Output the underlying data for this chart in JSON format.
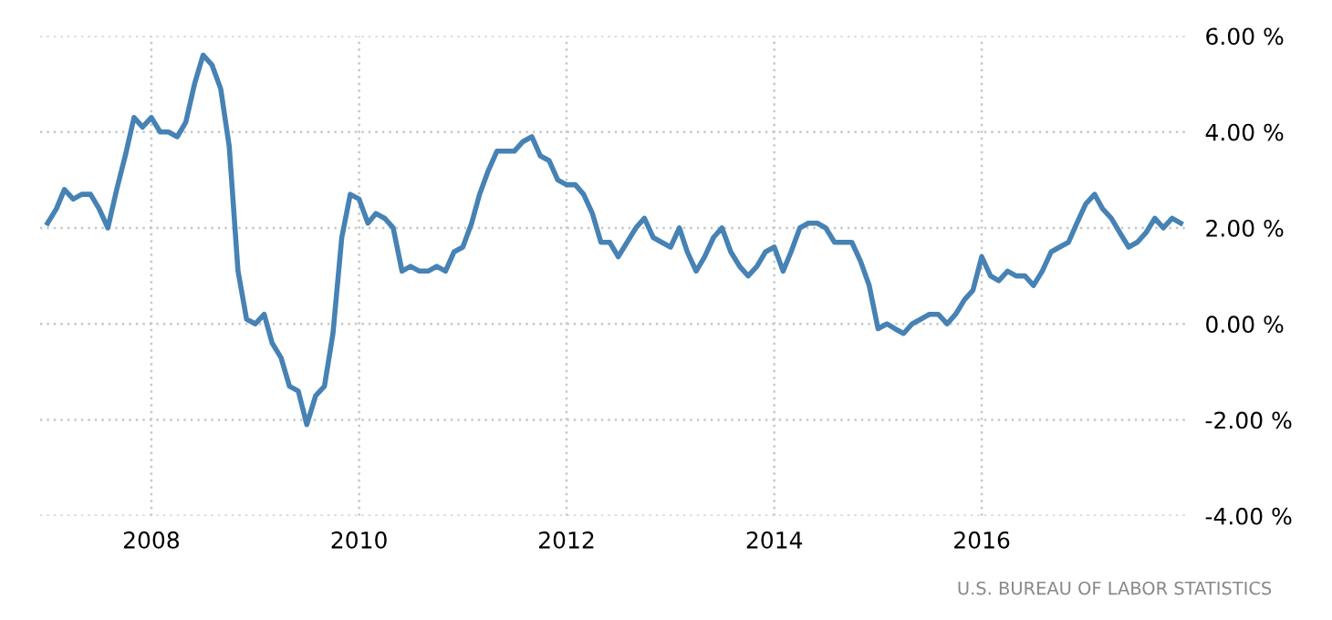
{
  "chart_data": {
    "type": "line",
    "x": [
      "2007-01",
      "2007-02",
      "2007-03",
      "2007-04",
      "2007-05",
      "2007-06",
      "2007-07",
      "2007-08",
      "2007-09",
      "2007-10",
      "2007-11",
      "2007-12",
      "2008-01",
      "2008-02",
      "2008-03",
      "2008-04",
      "2008-05",
      "2008-06",
      "2008-07",
      "2008-08",
      "2008-09",
      "2008-10",
      "2008-11",
      "2008-12",
      "2009-01",
      "2009-02",
      "2009-03",
      "2009-04",
      "2009-05",
      "2009-06",
      "2009-07",
      "2009-08",
      "2009-09",
      "2009-10",
      "2009-11",
      "2009-12",
      "2010-01",
      "2010-02",
      "2010-03",
      "2010-04",
      "2010-05",
      "2010-06",
      "2010-07",
      "2010-08",
      "2010-09",
      "2010-10",
      "2010-11",
      "2010-12",
      "2011-01",
      "2011-02",
      "2011-03",
      "2011-04",
      "2011-05",
      "2011-06",
      "2011-07",
      "2011-08",
      "2011-09",
      "2011-10",
      "2011-11",
      "2011-12",
      "2012-01",
      "2012-02",
      "2012-03",
      "2012-04",
      "2012-05",
      "2012-06",
      "2012-07",
      "2012-08",
      "2012-09",
      "2012-10",
      "2012-11",
      "2012-12",
      "2013-01",
      "2013-02",
      "2013-03",
      "2013-04",
      "2013-05",
      "2013-06",
      "2013-07",
      "2013-08",
      "2013-09",
      "2013-10",
      "2013-11",
      "2013-12",
      "2014-01",
      "2014-02",
      "2014-03",
      "2014-04",
      "2014-05",
      "2014-06",
      "2014-07",
      "2014-08",
      "2014-09",
      "2014-10",
      "2014-11",
      "2014-12",
      "2015-01",
      "2015-02",
      "2015-03",
      "2015-04",
      "2015-05",
      "2015-06",
      "2015-07",
      "2015-08",
      "2015-09",
      "2015-10",
      "2015-11",
      "2015-12",
      "2016-01",
      "2016-02",
      "2016-03",
      "2016-04",
      "2016-05",
      "2016-06",
      "2016-07",
      "2016-08",
      "2016-09",
      "2016-10",
      "2016-11",
      "2016-12",
      "2017-01",
      "2017-02",
      "2017-03",
      "2017-04",
      "2017-05",
      "2017-06",
      "2017-07",
      "2017-08",
      "2017-09",
      "2017-10",
      "2017-11",
      "2017-12"
    ],
    "series": [
      {
        "color": "#4682b4",
        "values": [
          2.1,
          2.4,
          2.8,
          2.6,
          2.7,
          2.7,
          2.4,
          2.0,
          2.8,
          3.5,
          4.3,
          4.1,
          4.3,
          4.0,
          4.0,
          3.9,
          4.2,
          5.0,
          5.6,
          5.4,
          4.9,
          3.7,
          1.1,
          0.1,
          0.0,
          0.2,
          -0.4,
          -0.7,
          -1.3,
          -1.4,
          -2.1,
          -1.5,
          -1.3,
          -0.2,
          1.8,
          2.7,
          2.6,
          2.1,
          2.3,
          2.2,
          2.0,
          1.1,
          1.2,
          1.1,
          1.1,
          1.2,
          1.1,
          1.5,
          1.6,
          2.1,
          2.7,
          3.2,
          3.6,
          3.6,
          3.6,
          3.8,
          3.9,
          3.5,
          3.4,
          3.0,
          2.9,
          2.9,
          2.7,
          2.3,
          1.7,
          1.7,
          1.4,
          1.7,
          2.0,
          2.2,
          1.8,
          1.7,
          1.6,
          2.0,
          1.5,
          1.1,
          1.4,
          1.8,
          2.0,
          1.5,
          1.2,
          1.0,
          1.2,
          1.5,
          1.6,
          1.1,
          1.5,
          2.0,
          2.1,
          2.1,
          2.0,
          1.7,
          1.7,
          1.7,
          1.3,
          0.8,
          -0.1,
          0.0,
          -0.1,
          -0.2,
          0.0,
          0.1,
          0.2,
          0.2,
          0.0,
          0.2,
          0.5,
          0.7,
          1.4,
          1.0,
          0.9,
          1.1,
          1.0,
          1.0,
          0.8,
          1.1,
          1.5,
          1.6,
          1.7,
          2.1,
          2.5,
          2.7,
          2.4,
          2.2,
          1.9,
          1.6,
          1.7,
          1.9,
          2.2,
          2.0,
          2.2,
          2.1
        ]
      }
    ],
    "xlim": [
      "2006-12-05",
      "2018-01-01"
    ],
    "xticks": [
      {
        "value": "2008-01",
        "label": "2008"
      },
      {
        "value": "2010-01",
        "label": "2010"
      },
      {
        "value": "2012-01",
        "label": "2012"
      },
      {
        "value": "2014-01",
        "label": "2014"
      },
      {
        "value": "2016-01",
        "label": "2016"
      }
    ],
    "ylim": [
      -4,
      6
    ],
    "yticks": [
      {
        "value": 6,
        "label": "6.00 %"
      },
      {
        "value": 4,
        "label": "4.00 %"
      },
      {
        "value": 2,
        "label": "2.00 %"
      },
      {
        "value": 0,
        "label": "0.00 %"
      },
      {
        "value": -2,
        "label": "-2.00 %"
      },
      {
        "value": -4,
        "label": "-4.00 %"
      }
    ],
    "grid": true,
    "annotations": [
      "U.S. BUREAU OF LABOR STATISTICS"
    ]
  }
}
